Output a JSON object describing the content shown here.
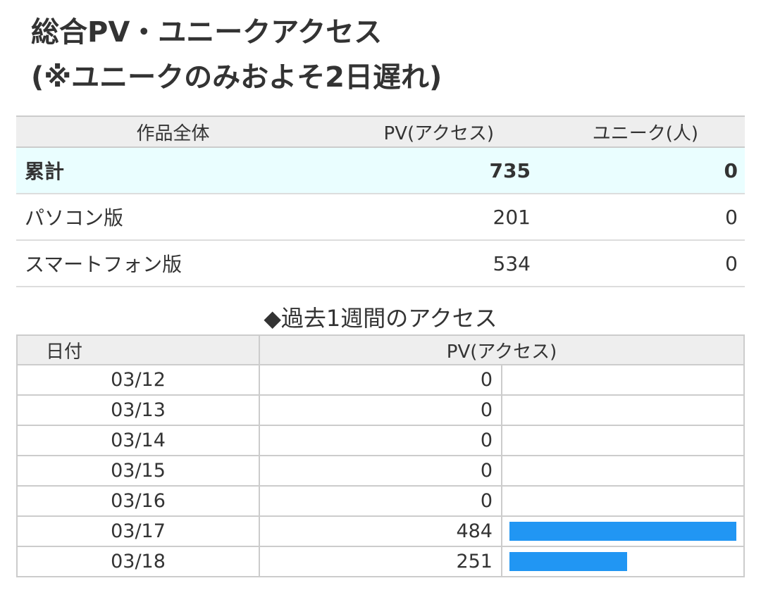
{
  "title": {
    "line1": "総合PV・ユニークアクセス",
    "line2": "(※ユニークのみおよそ2日遅れ)"
  },
  "summary": {
    "headers": [
      "作品全体",
      "PV(アクセス)",
      "ユニーク(人)"
    ],
    "rows": [
      {
        "label": "累計",
        "pv": "735",
        "unique": "0"
      },
      {
        "label": "パソコン版",
        "pv": "201",
        "unique": "0"
      },
      {
        "label": "スマートフォン版",
        "pv": "534",
        "unique": "0"
      }
    ]
  },
  "weekly": {
    "heading": "◆過去1週間のアクセス",
    "headers": [
      "日付",
      "PV(アクセス)"
    ],
    "max": 484,
    "bar_color": "#2196f3",
    "rows": [
      {
        "date": "03/12",
        "pv": "0"
      },
      {
        "date": "03/13",
        "pv": "0"
      },
      {
        "date": "03/14",
        "pv": "0"
      },
      {
        "date": "03/15",
        "pv": "0"
      },
      {
        "date": "03/16",
        "pv": "0"
      },
      {
        "date": "03/17",
        "pv": "484"
      },
      {
        "date": "03/18",
        "pv": "251"
      }
    ]
  }
}
